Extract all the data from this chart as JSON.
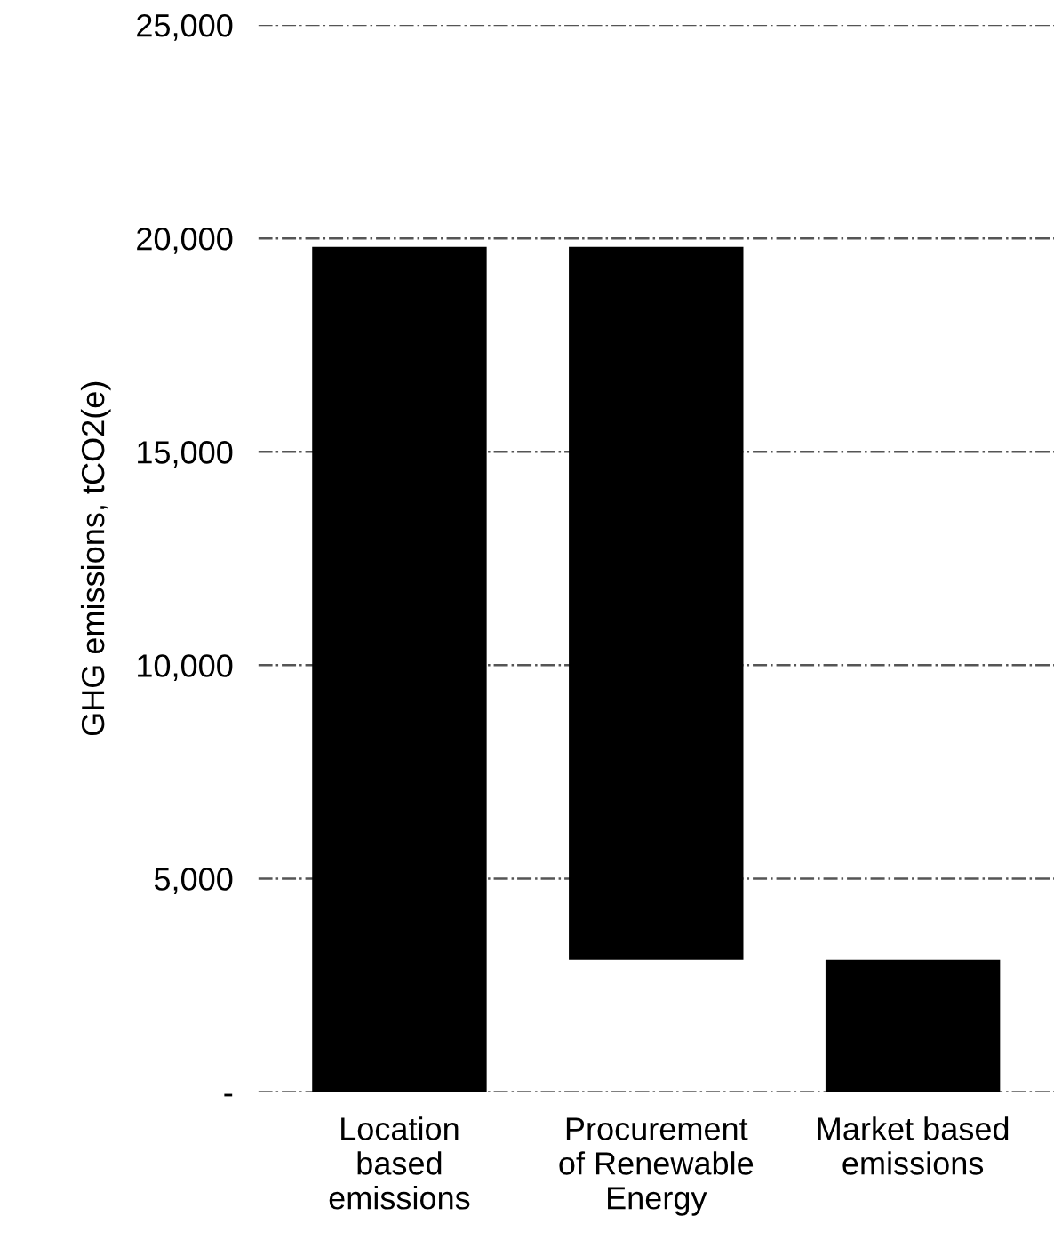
{
  "chart_data": {
    "type": "bar",
    "ylabel": "GHG emissions, tCO2(e)",
    "categories": [
      "Location\nbased\nemissions",
      "Procurement\nof Renewable\nEnergy",
      "Market based\nemissions"
    ],
    "values": [
      19800,
      16700,
      3100
    ],
    "base": [
      0,
      3100,
      0
    ],
    "color": "#000000",
    "ylim": [
      0,
      25000
    ],
    "yticks": [
      {
        "value": 0,
        "label": "-"
      },
      {
        "value": 5000,
        "label": "5,000"
      },
      {
        "value": 10000,
        "label": "10,000"
      },
      {
        "value": 15000,
        "label": "15,000"
      },
      {
        "value": 20000,
        "label": "20,000"
      },
      {
        "value": 25000,
        "label": "25,000"
      }
    ],
    "grid": "y"
  }
}
